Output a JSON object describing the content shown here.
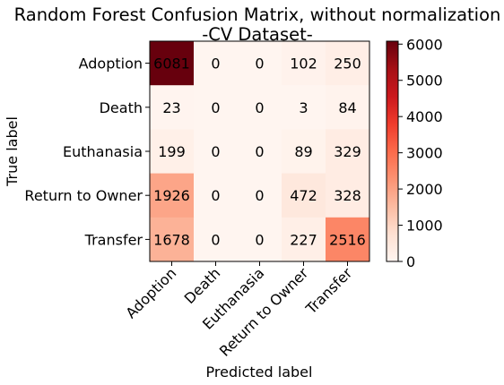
{
  "chart_data": {
    "type": "heatmap",
    "title": "Random Forest Confusion Matrix, without normalization",
    "subtitle": "-CV Dataset-",
    "xlabel": "Predicted label",
    "ylabel": "True label",
    "x_categories": [
      "Adoption",
      "Death",
      "Euthanasia",
      "Return to Owner",
      "Transfer"
    ],
    "y_categories": [
      "Adoption",
      "Death",
      "Euthanasia",
      "Return to Owner",
      "Transfer"
    ],
    "values": [
      [
        6081,
        0,
        0,
        102,
        250
      ],
      [
        23,
        0,
        0,
        3,
        84
      ],
      [
        199,
        0,
        0,
        89,
        329
      ],
      [
        1926,
        0,
        0,
        472,
        328
      ],
      [
        1678,
        0,
        0,
        227,
        2516
      ]
    ],
    "colorbar": {
      "range": [
        0,
        6081
      ],
      "ticks": [
        0,
        1000,
        2000,
        3000,
        4000,
        5000,
        6000
      ],
      "colormap": "Reds"
    },
    "colors": {
      "low": "#fff5f0",
      "high": "#67000d"
    }
  }
}
